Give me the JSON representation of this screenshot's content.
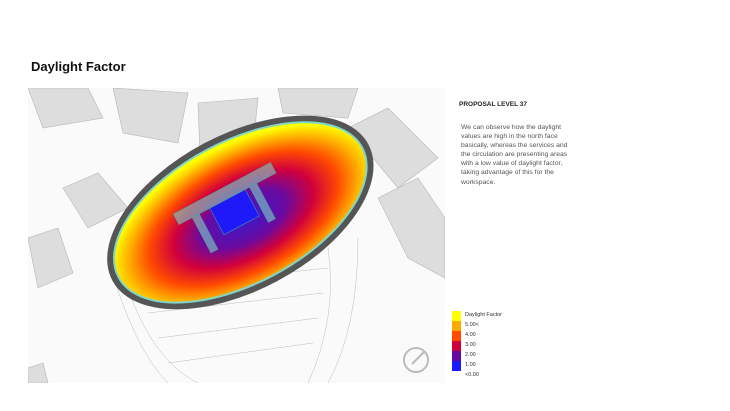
{
  "slide": {
    "title": "Daylight Factor"
  },
  "panel": {
    "heading": "PROPOSAL LEVEL 37",
    "description": "We can observe how the daylight values are high in the north face basically, whereas the services and the circulation are presenting  areas with a low value of daylight factor, taking advantage of this for the workspace."
  },
  "legend": {
    "title": "Daylight Factor",
    "labels": [
      "5.00<",
      "4.00",
      "3.00",
      "2.00",
      "1.00",
      "<0.00"
    ],
    "colors": [
      "#ffff00",
      "#ffaa00",
      "#ff4a00",
      "#d1003c",
      "#650aa0",
      "#1a1aff"
    ]
  },
  "icons": {
    "compass": "compass-icon"
  }
}
